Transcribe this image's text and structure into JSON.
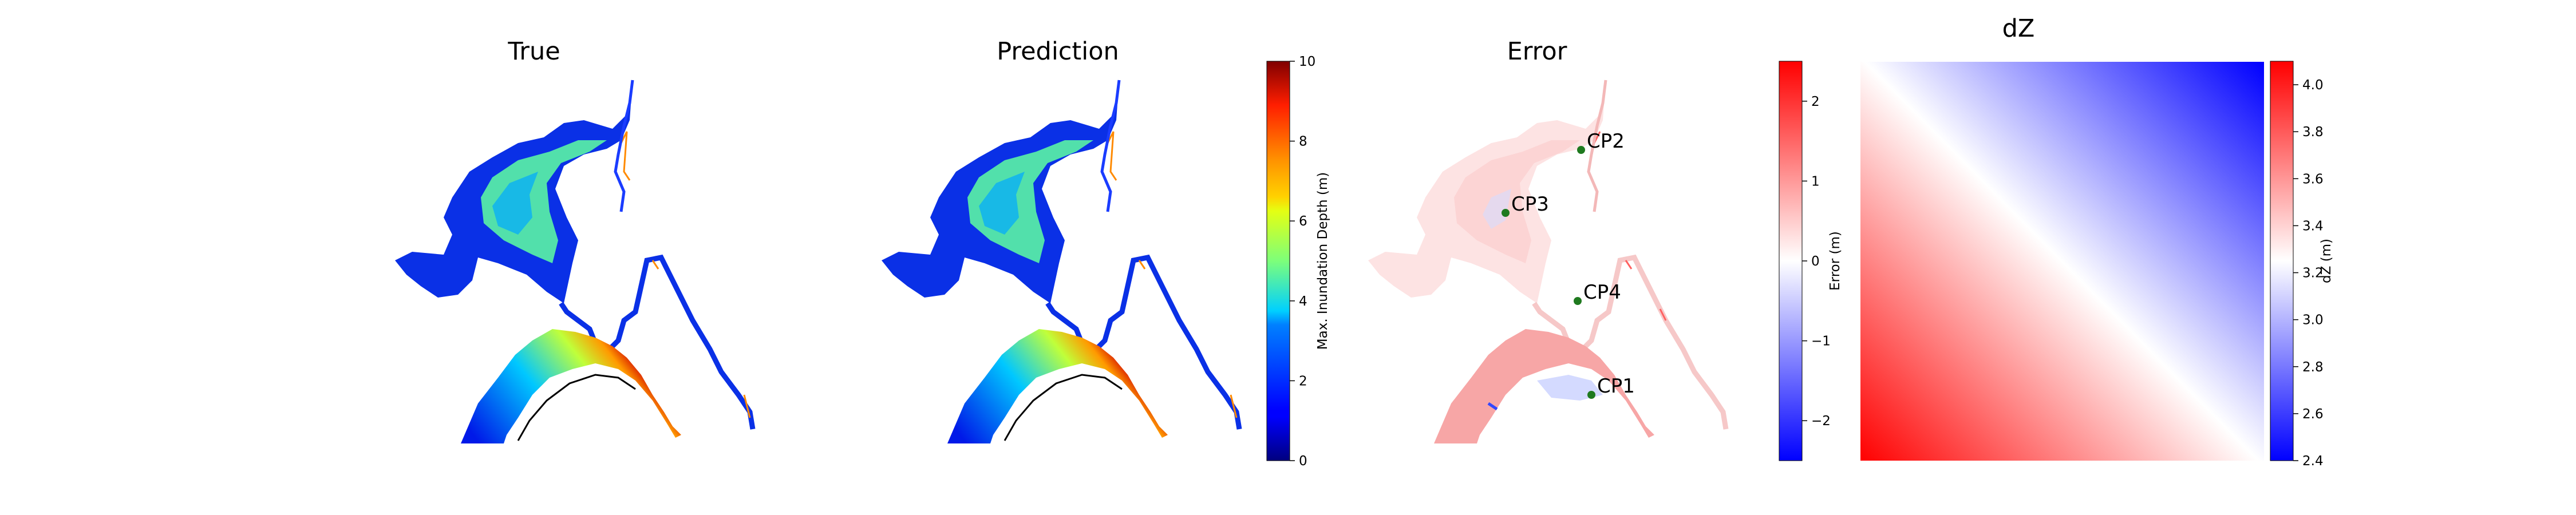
{
  "chart_data": [
    {
      "type": "heatmap",
      "title": "True",
      "colormap": "jet",
      "vlim": [
        0,
        10
      ]
    },
    {
      "type": "heatmap",
      "title": "Prediction",
      "colormap": "jet",
      "vlim": [
        0,
        10
      ],
      "colorbar": {
        "label": "Max. Inundation Depth (m)",
        "ticks": [
          0,
          2,
          4,
          6,
          8,
          10
        ],
        "tick_labels": [
          "0",
          "2",
          "4",
          "6",
          "8",
          "10"
        ]
      }
    },
    {
      "type": "heatmap",
      "title": "Error",
      "colormap": "bwr",
      "vlim": [
        -2.5,
        2.5
      ],
      "colorbar": {
        "label": "Error (m)",
        "ticks": [
          -2,
          -1,
          0,
          1,
          2
        ],
        "tick_labels": [
          "−2",
          "−1",
          "0",
          "1",
          "2"
        ]
      },
      "control_points": [
        {
          "label": "CP1",
          "color": "#1f7a1f"
        },
        {
          "label": "CP2",
          "color": "#1f7a1f"
        },
        {
          "label": "CP3",
          "color": "#1f7a1f"
        },
        {
          "label": "CP4",
          "color": "#1f7a1f"
        }
      ]
    },
    {
      "type": "heatmap",
      "title": "dZ",
      "colormap": "bwr",
      "vlim": [
        2.4,
        4.1
      ],
      "corners": {
        "top_right": 2.4,
        "bottom_left": 4.1
      },
      "colorbar": {
        "label": "dZ (m)",
        "ticks": [
          2.4,
          2.6,
          2.8,
          3.0,
          3.2,
          3.4,
          3.6,
          3.8,
          4.0
        ],
        "tick_labels": [
          "2.4",
          "2.6",
          "2.8",
          "3.0",
          "3.2",
          "3.4",
          "3.6",
          "3.8",
          "4.0"
        ]
      }
    }
  ]
}
